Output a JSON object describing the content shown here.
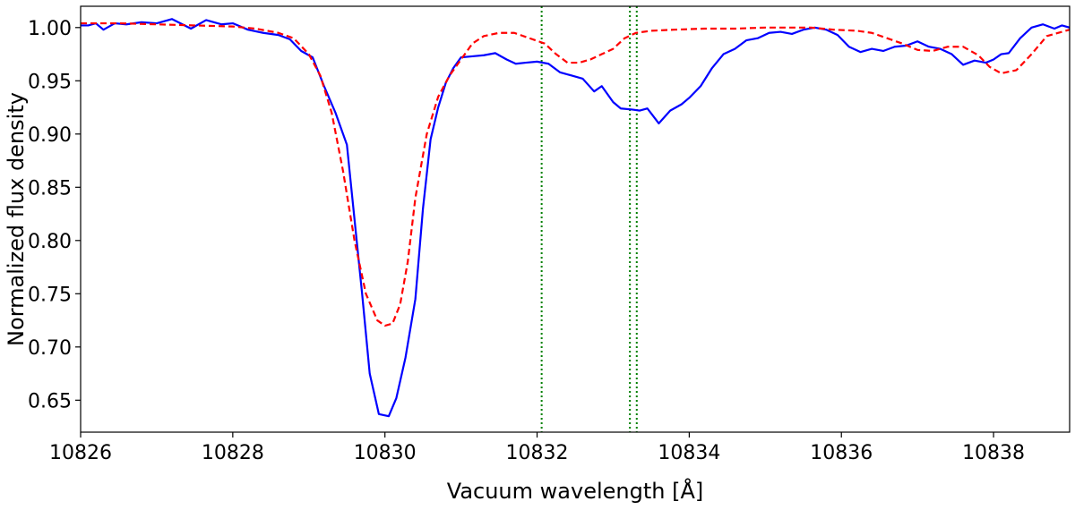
{
  "chart_data": {
    "type": "line",
    "title": "",
    "xlabel": "Vacuum wavelength [Å]",
    "ylabel": "Normalized flux density",
    "xlim": [
      10826,
      10839
    ],
    "ylim": [
      0.62,
      1.02
    ],
    "grid": false,
    "x_ticks": [
      10826,
      10828,
      10830,
      10832,
      10834,
      10836,
      10838
    ],
    "x_tick_labels": [
      "10826",
      "10828",
      "10830",
      "10832",
      "10834",
      "10836",
      "10838"
    ],
    "y_ticks": [
      0.65,
      0.7,
      0.75,
      0.8,
      0.85,
      0.9,
      0.95,
      1.0
    ],
    "y_tick_labels": [
      "0.65",
      "0.70",
      "0.75",
      "0.80",
      "0.85",
      "0.90",
      "0.95",
      "1.00"
    ],
    "vlines": {
      "color": "#008000",
      "style": "dotted",
      "x": [
        10832.06,
        10833.22,
        10833.31
      ]
    },
    "series": [
      {
        "color": "#0000ff",
        "style": "solid",
        "x": [
          10826.0,
          10826.1,
          10826.2,
          10826.3,
          10826.45,
          10826.6,
          10826.8,
          10827.0,
          10827.2,
          10827.45,
          10827.65,
          10827.85,
          10828.0,
          10828.2,
          10828.4,
          10828.6,
          10828.75,
          10828.9,
          10829.05,
          10829.2,
          10829.35,
          10829.5,
          10829.6,
          10829.7,
          10829.8,
          10829.92,
          10830.05,
          10830.15,
          10830.27,
          10830.4,
          10830.5,
          10830.6,
          10830.7,
          10830.8,
          10830.9,
          10831.0,
          10831.15,
          10831.3,
          10831.45,
          10831.6,
          10831.72,
          10831.85,
          10832.0,
          10832.15,
          10832.3,
          10832.45,
          10832.6,
          10832.75,
          10832.85,
          10833.0,
          10833.1,
          10833.25,
          10833.35,
          10833.45,
          10833.6,
          10833.75,
          10833.9,
          10834.0,
          10834.15,
          10834.3,
          10834.45,
          10834.6,
          10834.75,
          10834.9,
          10835.05,
          10835.2,
          10835.35,
          10835.5,
          10835.65,
          10835.8,
          10835.95,
          10836.1,
          10836.25,
          10836.4,
          10836.55,
          10836.7,
          10836.85,
          10837.0,
          10837.15,
          10837.3,
          10837.45,
          10837.6,
          10837.75,
          10837.9,
          10838.0,
          10838.1,
          10838.2,
          10838.35,
          10838.5,
          10838.65,
          10838.8,
          10838.9,
          10839.0
        ],
        "y": [
          1.002,
          1.002,
          1.004,
          0.998,
          1.004,
          1.003,
          1.005,
          1.004,
          1.008,
          0.999,
          1.007,
          1.003,
          1.004,
          0.998,
          0.995,
          0.993,
          0.989,
          0.978,
          0.972,
          0.945,
          0.92,
          0.89,
          0.82,
          0.75,
          0.675,
          0.637,
          0.635,
          0.652,
          0.69,
          0.745,
          0.83,
          0.895,
          0.925,
          0.948,
          0.962,
          0.972,
          0.973,
          0.974,
          0.976,
          0.97,
          0.966,
          0.967,
          0.968,
          0.966,
          0.958,
          0.955,
          0.952,
          0.94,
          0.945,
          0.93,
          0.924,
          0.923,
          0.922,
          0.924,
          0.91,
          0.922,
          0.928,
          0.934,
          0.945,
          0.962,
          0.975,
          0.98,
          0.988,
          0.99,
          0.995,
          0.996,
          0.994,
          0.998,
          1.0,
          0.998,
          0.993,
          0.982,
          0.977,
          0.98,
          0.978,
          0.982,
          0.983,
          0.987,
          0.982,
          0.98,
          0.975,
          0.965,
          0.969,
          0.967,
          0.97,
          0.975,
          0.976,
          0.99,
          1.0,
          1.003,
          0.999,
          1.002,
          1.0
        ]
      },
      {
        "color": "#ff0000",
        "style": "dashed",
        "x": [
          10826.0,
          10826.5,
          10827.0,
          10827.5,
          10828.0,
          10828.3,
          10828.6,
          10828.8,
          10829.0,
          10829.15,
          10829.3,
          10829.45,
          10829.6,
          10829.75,
          10829.9,
          10830.0,
          10830.1,
          10830.2,
          10830.3,
          10830.4,
          10830.55,
          10830.7,
          10830.85,
          10831.0,
          10831.15,
          10831.3,
          10831.5,
          10831.7,
          10831.9,
          10832.1,
          10832.25,
          10832.4,
          10832.55,
          10832.7,
          10832.85,
          10833.0,
          10833.15,
          10833.3,
          10833.5,
          10833.8,
          10834.2,
          10834.6,
          10835.0,
          10835.3,
          10835.6,
          10835.9,
          10836.2,
          10836.4,
          10836.6,
          10836.8,
          10837.0,
          10837.2,
          10837.4,
          10837.6,
          10837.8,
          10837.95,
          10838.1,
          10838.3,
          10838.5,
          10838.7,
          10839.0
        ],
        "y": [
          1.004,
          1.004,
          1.003,
          1.002,
          1.001,
          0.999,
          0.995,
          0.99,
          0.975,
          0.955,
          0.92,
          0.865,
          0.8,
          0.75,
          0.725,
          0.72,
          0.722,
          0.74,
          0.78,
          0.84,
          0.9,
          0.935,
          0.955,
          0.97,
          0.985,
          0.992,
          0.995,
          0.995,
          0.99,
          0.985,
          0.975,
          0.967,
          0.967,
          0.97,
          0.975,
          0.98,
          0.99,
          0.995,
          0.997,
          0.998,
          0.999,
          0.999,
          1.0,
          1.0,
          1.0,
          0.998,
          0.997,
          0.995,
          0.99,
          0.985,
          0.979,
          0.978,
          0.982,
          0.982,
          0.974,
          0.963,
          0.957,
          0.96,
          0.975,
          0.992,
          0.998
        ]
      }
    ]
  }
}
